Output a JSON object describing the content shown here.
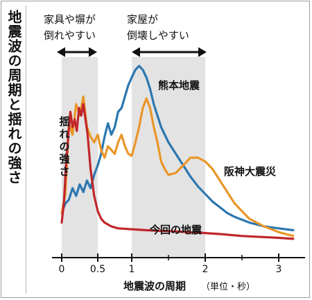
{
  "chart_data": {
    "type": "line",
    "title": "地震波の周期と揺れの強さ",
    "xlabel": "地震波の周期",
    "xlabel_unit": "（単位・秒）",
    "ylabel": "揺れの強さ",
    "xlim": [
      -0.05,
      3.25
    ],
    "ylim": [
      0,
      100
    ],
    "x_ticks": [
      0,
      0.5,
      1,
      2,
      3
    ],
    "x_tick_labels": [
      "0",
      "0.5",
      "1",
      "2",
      "3"
    ],
    "bands": [
      {
        "from": 0,
        "to": 0.5,
        "label_line1": "家具や塀が",
        "label_line2": "倒れやすい"
      },
      {
        "from": 1,
        "to": 2,
        "label_line1": "家屋が",
        "label_line2": "倒壊しやすい"
      }
    ],
    "series": [
      {
        "name": "熊本地震",
        "color": "#2c77b0",
        "x": [
          0.0,
          0.05,
          0.1,
          0.15,
          0.2,
          0.25,
          0.3,
          0.35,
          0.4,
          0.45,
          0.5,
          0.55,
          0.6,
          0.65,
          0.7,
          0.75,
          0.8,
          0.85,
          0.9,
          0.95,
          1.0,
          1.05,
          1.1,
          1.15,
          1.2,
          1.25,
          1.3,
          1.35,
          1.4,
          1.5,
          1.6,
          1.7,
          1.8,
          1.9,
          2.0,
          2.1,
          2.2,
          2.3,
          2.4,
          2.6,
          2.8,
          3.0,
          3.2
        ],
        "y": [
          15,
          20,
          22,
          28,
          24,
          30,
          26,
          32,
          28,
          35,
          40,
          46,
          55,
          62,
          56,
          60,
          68,
          70,
          76,
          82,
          86,
          90,
          92,
          90,
          86,
          80,
          72,
          66,
          60,
          52,
          46,
          40,
          34,
          29,
          25,
          21,
          18,
          15,
          13,
          10,
          8,
          7,
          6
        ]
      },
      {
        "name": "阪神大震災",
        "color": "#e99628",
        "x": [
          0.0,
          0.05,
          0.1,
          0.15,
          0.2,
          0.25,
          0.3,
          0.35,
          0.4,
          0.45,
          0.5,
          0.55,
          0.6,
          0.65,
          0.7,
          0.75,
          0.8,
          0.85,
          0.9,
          0.95,
          1.0,
          1.05,
          1.1,
          1.15,
          1.2,
          1.25,
          1.3,
          1.35,
          1.4,
          1.45,
          1.5,
          1.6,
          1.7,
          1.8,
          1.9,
          2.0,
          2.1,
          2.2,
          2.3,
          2.4,
          2.6,
          2.8,
          3.0,
          3.2
        ],
        "y": [
          15,
          25,
          62,
          56,
          72,
          66,
          76,
          60,
          55,
          52,
          56,
          48,
          44,
          50,
          48,
          46,
          52,
          56,
          50,
          46,
          45,
          52,
          60,
          70,
          75,
          70,
          60,
          52,
          42,
          38,
          35,
          36,
          40,
          44,
          44,
          42,
          38,
          32,
          26,
          20,
          12,
          8,
          5,
          3
        ]
      },
      {
        "name": "今回の地震",
        "color": "#c0262b",
        "x": [
          0.0,
          0.03,
          0.06,
          0.09,
          0.12,
          0.15,
          0.18,
          0.21,
          0.24,
          0.27,
          0.3,
          0.33,
          0.36,
          0.4,
          0.45,
          0.5,
          0.55,
          0.6,
          0.7,
          0.8,
          1.0,
          1.2,
          1.5,
          1.8,
          2.0,
          2.2,
          2.5,
          3.0,
          3.2
        ],
        "y": [
          10,
          20,
          40,
          55,
          68,
          60,
          64,
          58,
          70,
          66,
          72,
          64,
          56,
          38,
          24,
          16,
          12,
          10,
          8,
          7,
          6.5,
          6,
          5.5,
          5,
          4.5,
          4,
          3,
          2,
          1.5
        ]
      }
    ]
  }
}
